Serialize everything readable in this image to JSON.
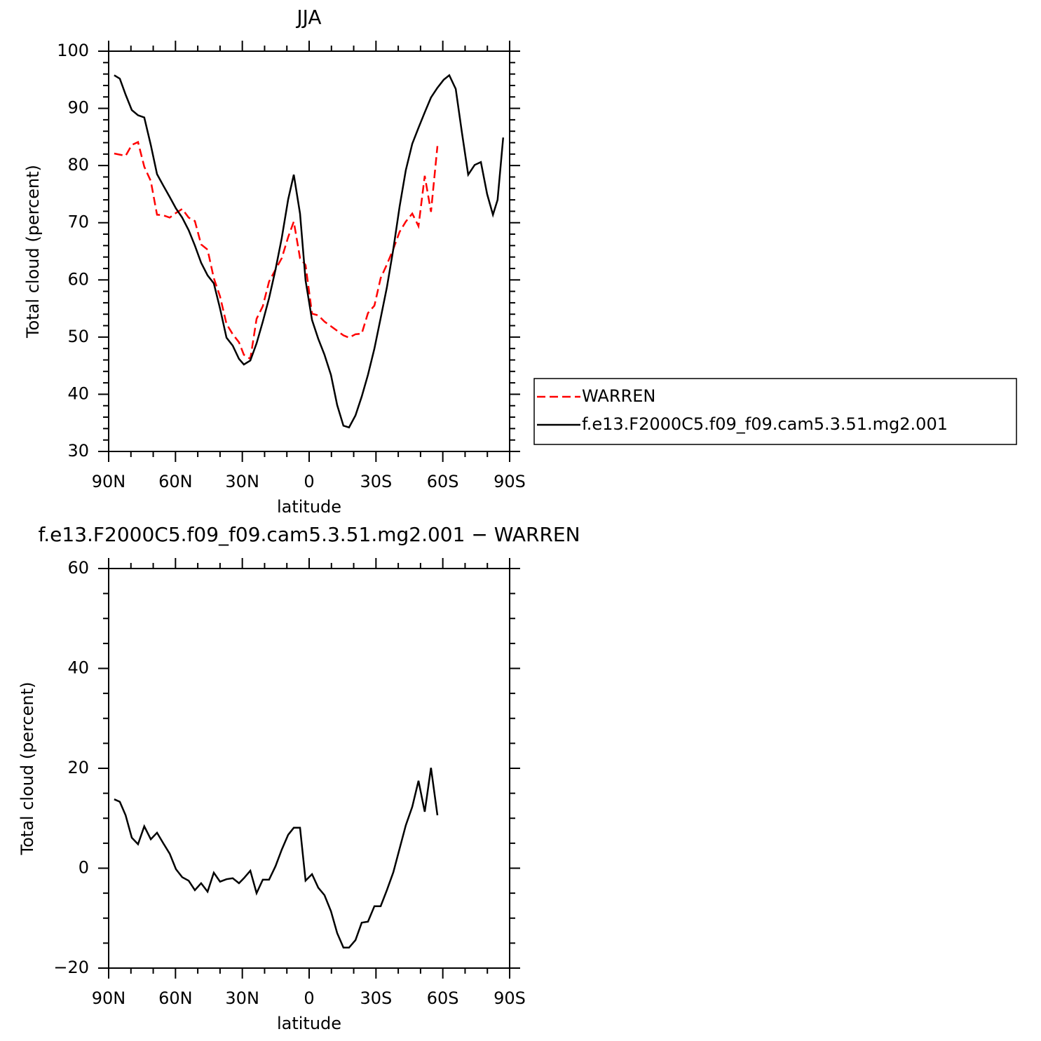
{
  "chart_data": [
    {
      "type": "line",
      "title": "JJA",
      "xlabel": "latitude",
      "ylabel": "Total cloud (percent)",
      "x": [
        87.5,
        85.0,
        82.4,
        79.6,
        76.8,
        74.0,
        71.1,
        68.3,
        65.5,
        62.6,
        59.8,
        57.0,
        54.1,
        51.3,
        48.5,
        45.6,
        42.8,
        40.0,
        37.1,
        34.3,
        31.5,
        29.3,
        26.4,
        23.6,
        20.8,
        18.0,
        15.1,
        12.3,
        9.4,
        6.9,
        4.1,
        1.6,
        -1.3,
        -4.1,
        -6.9,
        -9.8,
        -12.6,
        -15.4,
        -17.9,
        -20.8,
        -23.6,
        -26.4,
        -29.3,
        -32.1,
        -34.9,
        -37.8,
        -40.6,
        -43.4,
        -46.3,
        -49.1,
        -51.9,
        -54.7,
        -57.6,
        -60.4,
        -62.9,
        -65.8,
        -68.6,
        -71.4,
        -74.3,
        -77.1,
        -79.9,
        -82.5,
        -84.6,
        -87.1
      ],
      "series": [
        {
          "name": "WARREN",
          "color": "#ff0000",
          "style": "dashed",
          "values": [
            82.1,
            81.9,
            81.7,
            83.6,
            84.1,
            79.8,
            77.3,
            71.4,
            71.3,
            70.9,
            71.7,
            72.4,
            70.9,
            70.3,
            66.2,
            65.3,
            60.3,
            57.1,
            52.3,
            50.5,
            49.1,
            46.9,
            46.2,
            53.2,
            55.4,
            59.7,
            61.8,
            63.8,
            67.5,
            70.2,
            63.8,
            62.6,
            54.1,
            53.8,
            52.7,
            51.9,
            51.1,
            50.3,
            49.9,
            50.5,
            50.6,
            54.2,
            55.5,
            60.3,
            62.7,
            65.4,
            68.4,
            70.2,
            71.6,
            69.4,
            78.2,
            71.9,
            83.4,
            null,
            null,
            null,
            null,
            null,
            null,
            null,
            null,
            null,
            null,
            null
          ]
        },
        {
          "name": "f.e13.F2000C5.f09_f09.cam5.3.51.mg2.001",
          "color": "#000000",
          "style": "solid",
          "values": [
            95.8,
            95.2,
            92.4,
            89.7,
            88.8,
            88.4,
            83.6,
            78.5,
            76.5,
            74.5,
            72.5,
            70.9,
            68.7,
            66.0,
            63.0,
            60.8,
            59.4,
            55.0,
            49.9,
            48.5,
            46.2,
            45.2,
            45.9,
            48.9,
            52.7,
            56.8,
            61.8,
            67.3,
            74.1,
            78.4,
            71.6,
            59.9,
            53.0,
            49.7,
            46.9,
            43.4,
            38.1,
            34.5,
            34.2,
            36.3,
            39.6,
            43.4,
            48.0,
            53.3,
            58.7,
            65.4,
            72.8,
            79.2,
            83.8,
            86.6,
            89.3,
            91.9,
            93.6,
            95.0,
            95.8,
            93.4,
            85.7,
            78.4,
            80.1,
            80.6,
            75.0,
            71.4,
            74.0,
            84.9
          ]
        }
      ],
      "xlim": [
        90,
        -90
      ],
      "xticks": [
        {
          "value": 90,
          "label": "90N"
        },
        {
          "value": 60,
          "label": "60N"
        },
        {
          "value": 30,
          "label": "30N"
        },
        0,
        {
          "value": -30,
          "label": "30S"
        },
        {
          "value": -60,
          "label": "60S"
        },
        {
          "value": -90,
          "label": "90S"
        }
      ],
      "ylim": [
        30,
        100
      ],
      "yticks": [
        30,
        40,
        50,
        60,
        70,
        80,
        90,
        100
      ],
      "legend": "outside-right"
    },
    {
      "type": "line",
      "title": "f.e13.F2000C5.f09_f09.cam5.3.51.mg2.001 − WARREN",
      "xlabel": "latitude",
      "ylabel": "Total cloud (percent)",
      "x": [
        87.5,
        85.0,
        82.4,
        79.6,
        76.8,
        74.0,
        71.1,
        68.3,
        65.5,
        62.6,
        59.8,
        57.0,
        54.1,
        51.3,
        48.5,
        45.6,
        42.8,
        40.0,
        37.1,
        34.3,
        31.5,
        29.3,
        26.4,
        23.6,
        20.8,
        18.0,
        15.1,
        12.3,
        9.4,
        6.9,
        4.1,
        1.6,
        -1.3,
        -4.1,
        -6.9,
        -9.8,
        -12.6,
        -15.4,
        -17.9,
        -20.8,
        -23.6,
        -26.4,
        -29.3,
        -32.1,
        -34.9,
        -37.8,
        -40.6,
        -43.4,
        -46.3,
        -49.1,
        -51.9,
        -54.7,
        -57.6,
        -60.4,
        -62.9,
        -65.8,
        -68.6,
        -71.4,
        -74.3,
        -77.1,
        -79.9,
        -82.5,
        -84.6,
        -87.1
      ],
      "color": "#000000",
      "values": [
        13.8,
        13.3,
        10.6,
        6.1,
        4.8,
        8.4,
        5.8,
        7.1,
        5.0,
        2.9,
        -0.2,
        -1.8,
        -2.5,
        -4.4,
        -3.0,
        -4.7,
        -0.9,
        -2.7,
        -2.2,
        -2.0,
        -3.0,
        -2.0,
        -0.5,
        -5.0,
        -2.3,
        -2.3,
        0.4,
        3.7,
        6.7,
        8.1,
        8.1,
        -2.5,
        -1.2,
        -3.9,
        -5.4,
        -8.6,
        -13.0,
        -15.9,
        -15.9,
        -14.4,
        -10.9,
        -10.7,
        -7.6,
        -7.6,
        -4.4,
        -0.8,
        3.9,
        8.6,
        12.3,
        17.5,
        11.3,
        20.1,
        10.6,
        null,
        null,
        null,
        null,
        null,
        null,
        null,
        null,
        null,
        null,
        null
      ],
      "xlim": [
        90,
        -90
      ],
      "xticks": [
        {
          "value": 90,
          "label": "90N"
        },
        {
          "value": 60,
          "label": "60N"
        },
        {
          "value": 30,
          "label": "30N"
        },
        0,
        {
          "value": -30,
          "label": "30S"
        },
        {
          "value": -60,
          "label": "60S"
        },
        {
          "value": -90,
          "label": "90S"
        }
      ],
      "ylim": [
        -20,
        60
      ],
      "yticks": [
        {
          "value": -20,
          "label": "−20"
        },
        0,
        20,
        40,
        60
      ]
    }
  ]
}
